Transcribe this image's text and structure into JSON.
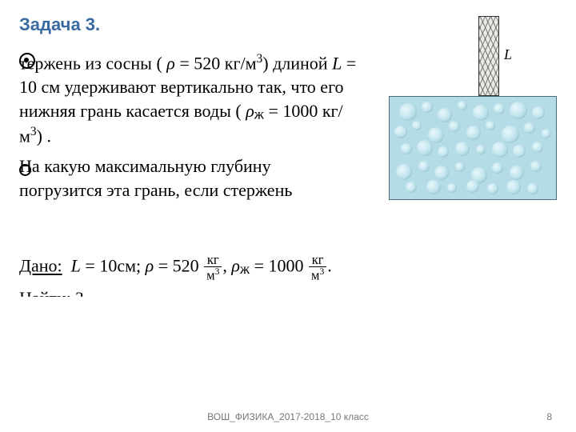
{
  "title": {
    "text": "Задача 3.",
    "color": "#3a6aa0"
  },
  "problem": {
    "line1_pre": "тержень из сосны ( ",
    "rho_sym": "ρ",
    "eq": " = ",
    "rho_val": "520 кг/м",
    "cube": "3",
    "line1_post": ")",
    "line2_pre": "длиной ",
    "L_sym": "L",
    "L_eq": " = 10 см удерживают",
    "line3": "вертикально так, что его нижняя грань",
    "line4_pre": "касается воды ( ",
    "rho_zh_sym": "ρ",
    "zh_sub": "ж",
    "rho_zh_eq": " = 1000 кг/м",
    "line4_post": ") .",
    "line5": "На какую максимальную глубину",
    "line6_visible": "погрузится эта грань, если стержень"
  },
  "dano": {
    "label": "Дано:",
    "L_part": " = 10см;  ",
    "rho_num_pre": " =  520",
    "frac_num": "кг",
    "frac_den": "м",
    "sep": ",   ",
    "rho_zh_num_pre": " = 1000",
    "dot": "."
  },
  "cutoff": {
    "text": "Найти:     ?"
  },
  "figure": {
    "L_label": "L",
    "water_color": "#b4dce7",
    "water_border": "#4b6b7a",
    "rod_bg": "#eceae5",
    "rod_hatch": "rgba(60,60,60,0.55)",
    "bubbles": [
      [
        12,
        8,
        22
      ],
      [
        40,
        6,
        14
      ],
      [
        60,
        14,
        18
      ],
      [
        85,
        5,
        12
      ],
      [
        104,
        10,
        20
      ],
      [
        130,
        8,
        14
      ],
      [
        150,
        6,
        22
      ],
      [
        178,
        12,
        16
      ],
      [
        6,
        36,
        16
      ],
      [
        28,
        30,
        12
      ],
      [
        48,
        38,
        20
      ],
      [
        74,
        30,
        14
      ],
      [
        96,
        36,
        18
      ],
      [
        120,
        30,
        12
      ],
      [
        140,
        36,
        22
      ],
      [
        168,
        32,
        14
      ],
      [
        190,
        40,
        12
      ],
      [
        14,
        58,
        14
      ],
      [
        34,
        54,
        20
      ],
      [
        60,
        62,
        14
      ],
      [
        82,
        56,
        18
      ],
      [
        108,
        60,
        12
      ],
      [
        128,
        56,
        20
      ],
      [
        154,
        60,
        16
      ],
      [
        178,
        56,
        14
      ],
      [
        8,
        84,
        20
      ],
      [
        36,
        80,
        14
      ],
      [
        56,
        86,
        18
      ],
      [
        82,
        82,
        12
      ],
      [
        102,
        88,
        20
      ],
      [
        128,
        82,
        14
      ],
      [
        150,
        86,
        18
      ],
      [
        176,
        80,
        14
      ],
      [
        20,
        106,
        14
      ],
      [
        46,
        104,
        18
      ],
      [
        72,
        108,
        12
      ],
      [
        96,
        104,
        16
      ],
      [
        122,
        108,
        14
      ],
      [
        146,
        104,
        18
      ],
      [
        172,
        108,
        14
      ]
    ]
  },
  "footer": {
    "text": "ВОШ_ФИЗИКА_2017-2018_10 класс",
    "page": "8",
    "color": "#808080"
  }
}
